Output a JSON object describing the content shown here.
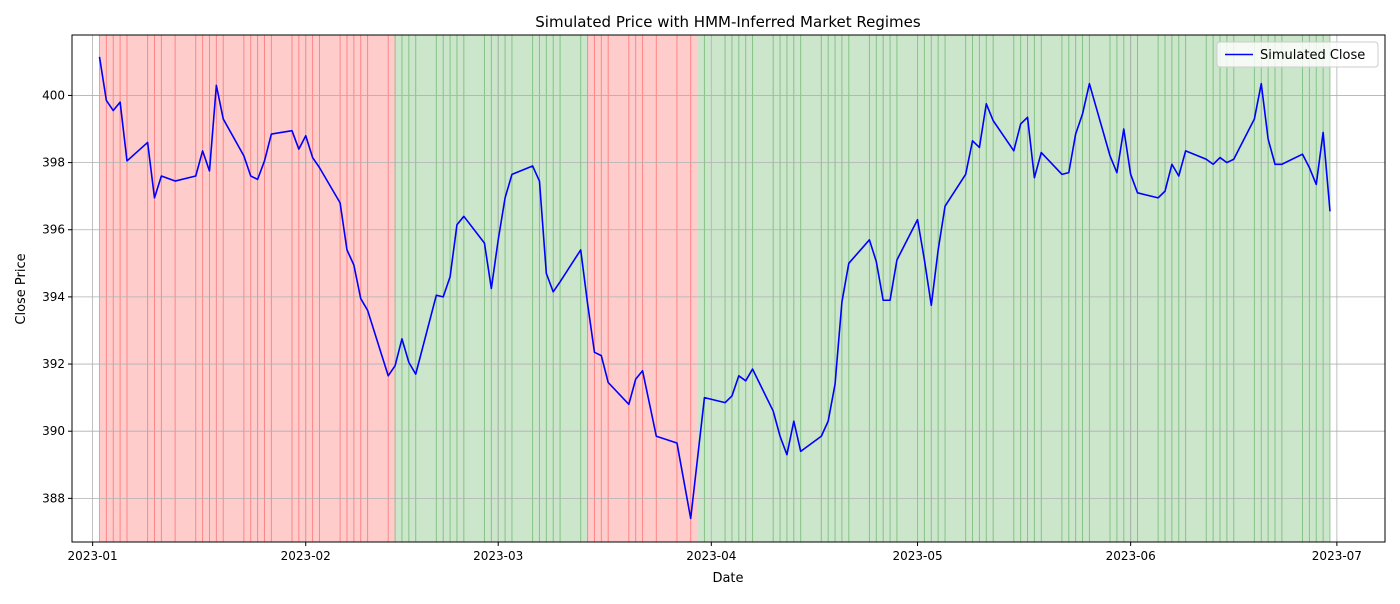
{
  "chart_data": {
    "type": "line",
    "title": "Simulated Price with HMM-Inferred Market Regimes",
    "xlabel": "Date",
    "ylabel": "Close Price",
    "xlim": [
      "2022-12-29",
      "2023-07-08"
    ],
    "ylim": [
      386.7,
      401.8
    ],
    "grid": true,
    "legend": {
      "position": "top-right",
      "entries": [
        "Simulated Close"
      ]
    },
    "x_ticks": [
      {
        "date": "2023-01-01",
        "label": "2023-01"
      },
      {
        "date": "2023-02-01",
        "label": "2023-02"
      },
      {
        "date": "2023-03-01",
        "label": "2023-03"
      },
      {
        "date": "2023-04-01",
        "label": "2023-04"
      },
      {
        "date": "2023-05-01",
        "label": "2023-05"
      },
      {
        "date": "2023-06-01",
        "label": "2023-06"
      },
      {
        "date": "2023-07-01",
        "label": "2023-07"
      }
    ],
    "y_ticks": [
      388,
      390,
      392,
      394,
      396,
      398,
      400
    ],
    "regimes": [
      {
        "start": "2023-01-02",
        "end": "2023-02-14",
        "color": "#ff0000",
        "name": "regime-red"
      },
      {
        "start": "2023-02-14",
        "end": "2023-03-14",
        "color": "#008000",
        "name": "regime-green"
      },
      {
        "start": "2023-03-14",
        "end": "2023-03-30",
        "color": "#ff0000",
        "name": "regime-red"
      },
      {
        "start": "2023-03-30",
        "end": "2023-06-30",
        "color": "#008000",
        "name": "regime-green"
      }
    ],
    "series": [
      {
        "name": "Simulated Close",
        "color": "#0000ff",
        "points": [
          [
            "2023-01-02",
            401.15
          ],
          [
            "2023-01-03",
            399.85
          ],
          [
            "2023-01-04",
            399.55
          ],
          [
            "2023-01-05",
            399.8
          ],
          [
            "2023-01-06",
            398.05
          ],
          [
            "2023-01-09",
            398.6
          ],
          [
            "2023-01-10",
            396.95
          ],
          [
            "2023-01-11",
            397.6
          ],
          [
            "2023-01-13",
            397.45
          ],
          [
            "2023-01-16",
            397.6
          ],
          [
            "2023-01-17",
            398.35
          ],
          [
            "2023-01-18",
            397.75
          ],
          [
            "2023-01-19",
            400.3
          ],
          [
            "2023-01-20",
            399.3
          ],
          [
            "2023-01-23",
            398.2
          ],
          [
            "2023-01-24",
            397.6
          ],
          [
            "2023-01-25",
            397.5
          ],
          [
            "2023-01-26",
            398.05
          ],
          [
            "2023-01-27",
            398.85
          ],
          [
            "2023-01-30",
            398.95
          ],
          [
            "2023-01-31",
            398.4
          ],
          [
            "2023-02-01",
            398.8
          ],
          [
            "2023-02-02",
            398.15
          ],
          [
            "2023-02-03",
            397.85
          ],
          [
            "2023-02-06",
            396.8
          ],
          [
            "2023-02-07",
            395.4
          ],
          [
            "2023-02-08",
            394.95
          ],
          [
            "2023-02-09",
            393.95
          ],
          [
            "2023-02-10",
            393.6
          ],
          [
            "2023-02-13",
            391.65
          ],
          [
            "2023-02-14",
            391.95
          ],
          [
            "2023-02-15",
            392.75
          ],
          [
            "2023-02-16",
            392.05
          ],
          [
            "2023-02-17",
            391.7
          ],
          [
            "2023-02-20",
            394.05
          ],
          [
            "2023-02-21",
            394.0
          ],
          [
            "2023-02-22",
            394.6
          ],
          [
            "2023-02-23",
            396.15
          ],
          [
            "2023-02-24",
            396.4
          ],
          [
            "2023-02-27",
            395.6
          ],
          [
            "2023-02-28",
            394.25
          ],
          [
            "2023-03-01",
            395.7
          ],
          [
            "2023-03-02",
            396.95
          ],
          [
            "2023-03-03",
            397.65
          ],
          [
            "2023-03-06",
            397.9
          ],
          [
            "2023-03-07",
            397.45
          ],
          [
            "2023-03-08",
            394.7
          ],
          [
            "2023-03-09",
            394.15
          ],
          [
            "2023-03-10",
            394.45
          ],
          [
            "2023-03-13",
            395.4
          ],
          [
            "2023-03-14",
            393.8
          ],
          [
            "2023-03-15",
            392.35
          ],
          [
            "2023-03-16",
            392.25
          ],
          [
            "2023-03-17",
            391.45
          ],
          [
            "2023-03-20",
            390.8
          ],
          [
            "2023-03-21",
            391.55
          ],
          [
            "2023-03-22",
            391.8
          ],
          [
            "2023-03-24",
            389.85
          ],
          [
            "2023-03-27",
            389.65
          ],
          [
            "2023-03-29",
            387.4
          ],
          [
            "2023-03-31",
            391.0
          ],
          [
            "2023-04-03",
            390.85
          ],
          [
            "2023-04-04",
            391.05
          ],
          [
            "2023-04-05",
            391.65
          ],
          [
            "2023-04-06",
            391.5
          ],
          [
            "2023-04-07",
            391.85
          ],
          [
            "2023-04-10",
            390.6
          ],
          [
            "2023-04-11",
            389.85
          ],
          [
            "2023-04-12",
            389.3
          ],
          [
            "2023-04-13",
            390.3
          ],
          [
            "2023-04-14",
            389.4
          ],
          [
            "2023-04-17",
            389.85
          ],
          [
            "2023-04-18",
            390.3
          ],
          [
            "2023-04-19",
            391.4
          ],
          [
            "2023-04-20",
            393.85
          ],
          [
            "2023-04-21",
            395.0
          ],
          [
            "2023-04-24",
            395.7
          ],
          [
            "2023-04-25",
            395.05
          ],
          [
            "2023-04-26",
            393.9
          ],
          [
            "2023-04-27",
            393.9
          ],
          [
            "2023-04-28",
            395.1
          ],
          [
            "2023-05-01",
            396.3
          ],
          [
            "2023-05-02",
            395.1
          ],
          [
            "2023-05-03",
            393.75
          ],
          [
            "2023-05-04",
            395.4
          ],
          [
            "2023-05-05",
            396.7
          ],
          [
            "2023-05-08",
            397.65
          ],
          [
            "2023-05-09",
            398.65
          ],
          [
            "2023-05-10",
            398.45
          ],
          [
            "2023-05-11",
            399.75
          ],
          [
            "2023-05-12",
            399.25
          ],
          [
            "2023-05-15",
            398.35
          ],
          [
            "2023-05-16",
            399.15
          ],
          [
            "2023-05-17",
            399.35
          ],
          [
            "2023-05-18",
            397.55
          ],
          [
            "2023-05-19",
            398.3
          ],
          [
            "2023-05-22",
            397.65
          ],
          [
            "2023-05-23",
            397.7
          ],
          [
            "2023-05-24",
            398.85
          ],
          [
            "2023-05-25",
            399.45
          ],
          [
            "2023-05-26",
            400.35
          ],
          [
            "2023-05-29",
            398.2
          ],
          [
            "2023-05-30",
            397.7
          ],
          [
            "2023-05-31",
            399.0
          ],
          [
            "2023-06-01",
            397.65
          ],
          [
            "2023-06-02",
            397.1
          ],
          [
            "2023-06-05",
            396.95
          ],
          [
            "2023-06-06",
            397.15
          ],
          [
            "2023-06-07",
            397.95
          ],
          [
            "2023-06-08",
            397.6
          ],
          [
            "2023-06-09",
            398.35
          ],
          [
            "2023-06-12",
            398.1
          ],
          [
            "2023-06-13",
            397.95
          ],
          [
            "2023-06-14",
            398.15
          ],
          [
            "2023-06-15",
            398.0
          ],
          [
            "2023-06-16",
            398.1
          ],
          [
            "2023-06-19",
            399.3
          ],
          [
            "2023-06-20",
            400.35
          ],
          [
            "2023-06-21",
            398.7
          ],
          [
            "2023-06-22",
            397.95
          ],
          [
            "2023-06-23",
            397.95
          ],
          [
            "2023-06-26",
            398.25
          ],
          [
            "2023-06-27",
            397.85
          ],
          [
            "2023-06-28",
            397.35
          ],
          [
            "2023-06-29",
            398.9
          ],
          [
            "2023-06-30",
            396.55
          ]
        ]
      }
    ]
  }
}
